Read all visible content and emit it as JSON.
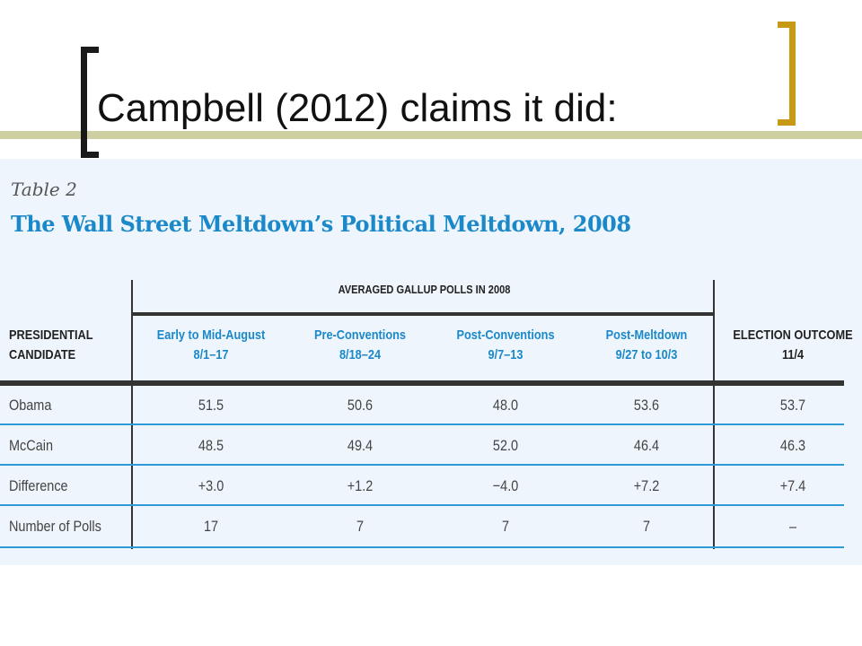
{
  "slide": {
    "title": "Campbell (2012) claims it did:"
  },
  "table": {
    "caption": "Table 2",
    "title": "The Wall Street Meltdown’s Political Meltdown, 2008",
    "group_header": "AVERAGED GALLUP POLLS IN 2008",
    "row_header": [
      "PRESIDENTIAL",
      "CANDIDATE"
    ],
    "columns": [
      {
        "name": "Early to Mid-August",
        "dates": "8/1–17"
      },
      {
        "name": "Pre-Conventions",
        "dates": "8/18–24"
      },
      {
        "name": "Post-Conventions",
        "dates": "9/7–13"
      },
      {
        "name": "Post-Meltdown",
        "dates": "9/27 to 10/3"
      },
      {
        "name": "ELECTION OUTCOME",
        "dates": "11/4"
      }
    ],
    "rows": [
      {
        "label": "Obama",
        "values": [
          "51.5",
          "50.6",
          "48.0",
          "53.6",
          "53.7"
        ]
      },
      {
        "label": "McCain",
        "values": [
          "48.5",
          "49.4",
          "52.0",
          "46.4",
          "46.3"
        ]
      },
      {
        "label": "Difference",
        "values": [
          "+3.0",
          "+1.2",
          "−4.0",
          "+7.2",
          "+7.4"
        ]
      },
      {
        "label": "Number of Polls",
        "values": [
          "17",
          "7",
          "7",
          "7",
          "–"
        ]
      }
    ],
    "colors": {
      "accent": "#1a88c9",
      "rule": "#2f9bd6",
      "panel": "#eef5fc",
      "bracket_gold": "#c79a16",
      "olive_band": "#cdcfa0"
    }
  }
}
